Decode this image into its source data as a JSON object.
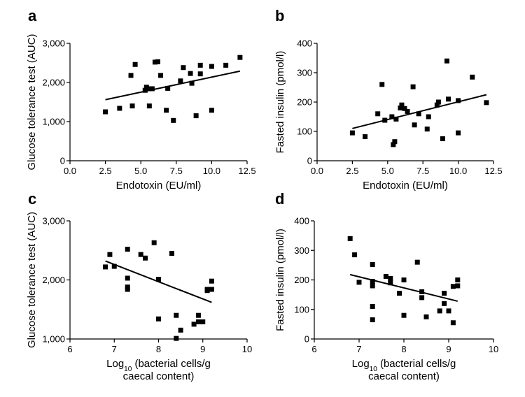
{
  "chart_data": [
    {
      "type": "scatter",
      "panel": "a",
      "xlabel": "Endotoxin (EU/ml)",
      "ylabel": "Glucose tolerance test (AUC)",
      "xlim": [
        0,
        12.5
      ],
      "ylim": [
        0,
        3000
      ],
      "xticks": [
        "0.0",
        "2.5",
        "5.0",
        "7.5",
        "10.0",
        "12.5"
      ],
      "yticks": [
        "0",
        "1,000",
        "2,000",
        "3,000"
      ],
      "x": [
        2.5,
        3.5,
        4.3,
        4.6,
        4.4,
        5.3,
        5.4,
        5.5,
        5.6,
        5.8,
        6.0,
        6.2,
        6.4,
        6.8,
        6.9,
        7.3,
        7.8,
        8.0,
        8.5,
        8.6,
        8.9,
        9.2,
        9.2,
        10.0,
        10.0,
        11.0,
        12.0
      ],
      "y": [
        1250,
        1340,
        2180,
        2460,
        1400,
        1800,
        1880,
        1840,
        1400,
        1840,
        2520,
        2530,
        2180,
        1290,
        1850,
        1030,
        2040,
        2380,
        2230,
        1980,
        1150,
        2220,
        2440,
        2410,
        1290,
        2440,
        2640
      ],
      "fit": {
        "x": [
          2.5,
          12.0
        ],
        "y": [
          1560,
          2290
        ]
      }
    },
    {
      "type": "scatter",
      "panel": "b",
      "xlabel": "Endotoxin (EU/ml)",
      "ylabel": "Fasted insulin (pmol/l)",
      "xlim": [
        0,
        12.5
      ],
      "ylim": [
        0,
        400
      ],
      "xticks": [
        "0.0",
        "2.5",
        "5.0",
        "7.5",
        "10.0",
        "12.5"
      ],
      "yticks": [
        "0",
        "100",
        "200",
        "300",
        "400"
      ],
      "x": [
        2.5,
        3.4,
        4.3,
        4.6,
        4.8,
        5.3,
        5.4,
        5.5,
        5.6,
        5.9,
        6.0,
        6.2,
        6.4,
        6.8,
        6.9,
        7.2,
        7.8,
        7.9,
        8.5,
        8.6,
        8.9,
        9.2,
        9.3,
        10.0,
        10.0,
        11.0,
        12.0
      ],
      "y": [
        95,
        82,
        160,
        260,
        138,
        150,
        55,
        65,
        142,
        180,
        190,
        178,
        168,
        252,
        122,
        160,
        108,
        150,
        190,
        200,
        75,
        340,
        210,
        95,
        205,
        285,
        198
      ],
      "fit": {
        "x": [
          2.5,
          12.0
        ],
        "y": [
          110,
          225
        ]
      }
    },
    {
      "type": "scatter",
      "panel": "c",
      "xlabel": "Log10 (bacterial cells/g caecal content)",
      "ylabel": "Glucose tolerance test (AUC)",
      "xlim": [
        6,
        10
      ],
      "ylim": [
        1000,
        3000
      ],
      "xticks": [
        "6",
        "7",
        "8",
        "9",
        "10"
      ],
      "yticks": [
        "1,000",
        "2,000",
        "3,000"
      ],
      "x": [
        6.8,
        6.9,
        7.0,
        7.3,
        7.3,
        7.3,
        7.3,
        7.6,
        7.7,
        7.9,
        8.0,
        8.0,
        8.3,
        8.4,
        8.5,
        8.4,
        8.8,
        8.9,
        8.9,
        9.0,
        9.1,
        9.1,
        9.2,
        9.2
      ],
      "y": [
        2220,
        2430,
        2230,
        2520,
        2030,
        1880,
        1840,
        2430,
        2370,
        2630,
        2010,
        1340,
        2450,
        1400,
        1150,
        1010,
        1250,
        1400,
        1290,
        1290,
        1820,
        1840,
        1980,
        1840
      ],
      "fit": {
        "x": [
          6.8,
          9.2
        ],
        "y": [
          2320,
          1620
        ]
      }
    },
    {
      "type": "scatter",
      "panel": "d",
      "xlabel": "Log10 (bacterial cells/g caecal content)",
      "ylabel": "Fasted insulin (pmol/l)",
      "xlim": [
        6,
        10
      ],
      "ylim": [
        0,
        400
      ],
      "xticks": [
        "6",
        "7",
        "8",
        "9",
        "10"
      ],
      "yticks": [
        "0",
        "100",
        "200",
        "300",
        "400"
      ],
      "x": [
        6.8,
        6.9,
        7.0,
        7.3,
        7.3,
        7.3,
        7.3,
        7.3,
        7.6,
        7.7,
        7.7,
        7.9,
        8.0,
        8.0,
        8.3,
        8.4,
        8.4,
        8.5,
        8.8,
        8.9,
        8.9,
        9.0,
        9.1,
        9.1,
        9.2,
        9.2
      ],
      "y": [
        340,
        285,
        192,
        252,
        195,
        180,
        110,
        65,
        212,
        205,
        190,
        155,
        200,
        80,
        260,
        160,
        140,
        75,
        95,
        155,
        120,
        95,
        178,
        55,
        200,
        180
      ],
      "fit": {
        "x": [
          6.8,
          9.2
        ],
        "y": [
          218,
          128
        ]
      }
    }
  ]
}
